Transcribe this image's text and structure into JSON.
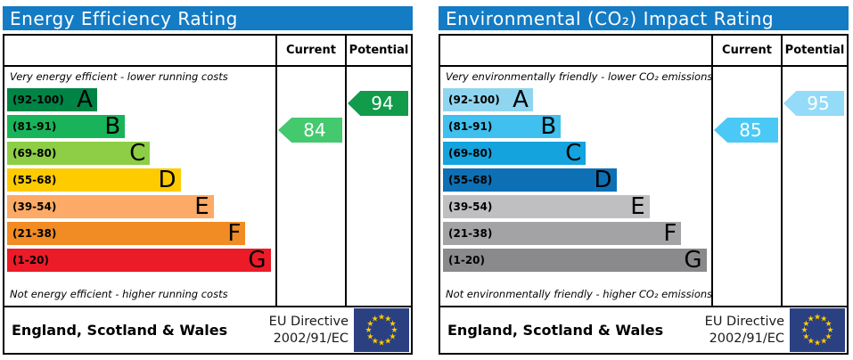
{
  "panels": [
    {
      "id": "energy-efficiency",
      "title": "Energy Efficiency Rating",
      "title_bg": "#147bc5",
      "columns": [
        "Current",
        "Potential"
      ],
      "top_caption": "Very energy efficient - lower running costs",
      "bottom_caption": "Not energy efficient - higher running costs",
      "bands": [
        {
          "letter": "A",
          "range": "(92-100)",
          "color": "#008445",
          "width_pct": 34
        },
        {
          "letter": "B",
          "range": "(81-91)",
          "color": "#19b459",
          "width_pct": 44.5
        },
        {
          "letter": "C",
          "range": "(69-80)",
          "color": "#8dce46",
          "width_pct": 54
        },
        {
          "letter": "D",
          "range": "(55-68)",
          "color": "#fecb00",
          "width_pct": 65.5
        },
        {
          "letter": "E",
          "range": "(39-54)",
          "color": "#fcaa65",
          "width_pct": 78
        },
        {
          "letter": "F",
          "range": "(21-38)",
          "color": "#f18b24",
          "width_pct": 90
        },
        {
          "letter": "G",
          "range": "(1-20)",
          "color": "#ec1b28",
          "width_pct": 99.5
        }
      ],
      "current": {
        "value": "84",
        "band": "B",
        "color": "#44c96e"
      },
      "potential": {
        "value": "94",
        "band": "A",
        "color": "#119b4b"
      },
      "footer": {
        "region": "England, Scotland & Wales",
        "directive_line1": "EU Directive",
        "directive_line2": "2002/91/EC"
      }
    },
    {
      "id": "environmental-co2-impact",
      "title": "Environmental (CO₂) Impact Rating",
      "title_bg": "#147bc5",
      "columns": [
        "Current",
        "Potential"
      ],
      "top_caption": "Very environmentally friendly - lower CO₂ emissions",
      "bottom_caption": "Not environmentally friendly - higher CO₂ emissions",
      "bands": [
        {
          "letter": "A",
          "range": "(92-100)",
          "color": "#90d5f0",
          "width_pct": 34
        },
        {
          "letter": "B",
          "range": "(81-91)",
          "color": "#3fc0ee",
          "width_pct": 44.5
        },
        {
          "letter": "C",
          "range": "(69-80)",
          "color": "#14a3dd",
          "width_pct": 54
        },
        {
          "letter": "D",
          "range": "(55-68)",
          "color": "#0d70b5",
          "width_pct": 65.5
        },
        {
          "letter": "E",
          "range": "(39-54)",
          "color": "#bfbfc1",
          "width_pct": 78
        },
        {
          "letter": "F",
          "range": "(21-38)",
          "color": "#a3a3a5",
          "width_pct": 90
        },
        {
          "letter": "G",
          "range": "(1-20)",
          "color": "#8a8a8c",
          "width_pct": 99.5
        }
      ],
      "current": {
        "value": "85",
        "band": "B",
        "color": "#4ac9f6"
      },
      "potential": {
        "value": "95",
        "band": "A",
        "color": "#93dbf8"
      },
      "footer": {
        "region": "England, Scotland & Wales",
        "directive_line1": "EU Directive",
        "directive_line2": "2002/91/EC"
      }
    }
  ],
  "eu_flag": {
    "bg": "#2b4080",
    "star_color": "#ffcc00"
  },
  "chart_data": [
    {
      "type": "bar",
      "title": "Energy Efficiency Rating",
      "categories": [
        "A (92-100)",
        "B (81-91)",
        "C (69-80)",
        "D (55-68)",
        "E (39-54)",
        "F (21-38)",
        "G (1-20)"
      ],
      "series": [
        {
          "name": "Current",
          "value": 84,
          "band": "B"
        },
        {
          "name": "Potential",
          "value": 94,
          "band": "A"
        }
      ],
      "value_range": [
        1,
        100
      ],
      "annotations": [
        "Very energy efficient - lower running costs",
        "Not energy efficient - higher running costs"
      ],
      "region": "England, Scotland & Wales",
      "directive": "EU Directive 2002/91/EC"
    },
    {
      "type": "bar",
      "title": "Environmental (CO₂) Impact Rating",
      "categories": [
        "A (92-100)",
        "B (81-91)",
        "C (69-80)",
        "D (55-68)",
        "E (39-54)",
        "F (21-38)",
        "G (1-20)"
      ],
      "series": [
        {
          "name": "Current",
          "value": 85,
          "band": "B"
        },
        {
          "name": "Potential",
          "value": 95,
          "band": "A"
        }
      ],
      "value_range": [
        1,
        100
      ],
      "annotations": [
        "Very environmentally friendly - lower CO₂ emissions",
        "Not environmentally friendly - higher CO₂ emissions"
      ],
      "region": "England, Scotland & Wales",
      "directive": "EU Directive 2002/91/EC"
    }
  ]
}
